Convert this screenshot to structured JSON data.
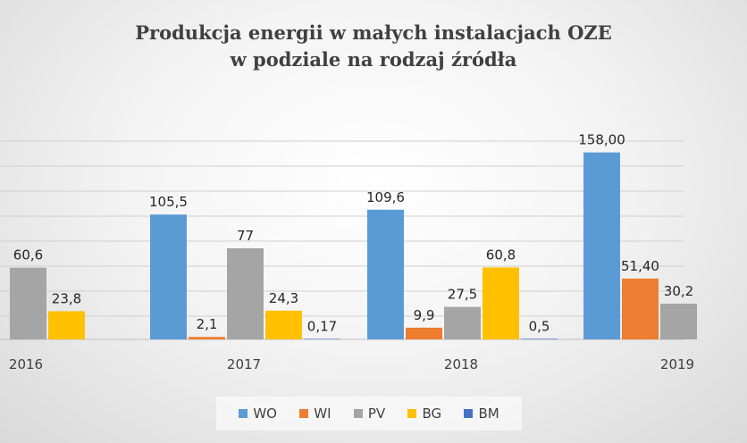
{
  "chart_data": {
    "type": "bar",
    "title_lines": [
      "Produkcja energii w małych instalacjach OZE",
      "w podziale na rodzaj źródła"
    ],
    "categories": [
      "2016",
      "2017",
      "2018",
      "2019"
    ],
    "series": [
      {
        "name": "WO",
        "color": "#5b9bd5",
        "values": [
          null,
          105.5,
          109.6,
          158.0
        ],
        "labels": [
          "",
          "105,5",
          "109,6",
          "158,00"
        ]
      },
      {
        "name": "WI",
        "color": "#ed7d31",
        "values": [
          null,
          2.1,
          9.9,
          51.4
        ],
        "labels": [
          "",
          "2,1",
          "9,9",
          "51,40"
        ]
      },
      {
        "name": "PV",
        "color": "#a5a5a5",
        "values": [
          60.6,
          77,
          27.5,
          30.2
        ],
        "labels": [
          "60,6",
          "77",
          "27,5",
          "30,2"
        ]
      },
      {
        "name": "BG",
        "color": "#ffc000",
        "values": [
          23.8,
          24.3,
          60.8,
          null
        ],
        "labels": [
          "23,8",
          "24,3",
          "60,8",
          ""
        ]
      },
      {
        "name": "BM",
        "color": "#4472c4",
        "values": [
          null,
          0.17,
          0.5,
          null
        ],
        "labels": [
          "",
          "0,17",
          "0,5",
          ""
        ]
      }
    ],
    "legend_position": "bottom",
    "grid": true
  }
}
